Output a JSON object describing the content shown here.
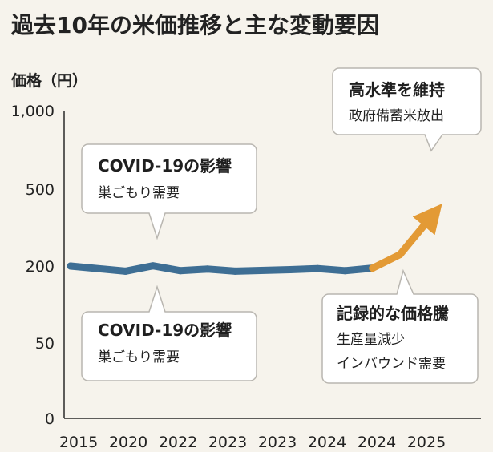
{
  "chart_data": {
    "type": "line",
    "title": "過去10年の米価推移と主な変動要因",
    "ylabel": "価格（円）",
    "xlabel": "",
    "y_ticks": [
      "1,000",
      "500",
      "200",
      "50",
      "0"
    ],
    "y_scale": "categorical-nonlinear",
    "x_tick_labels": [
      "2015",
      "2020",
      "2022",
      "2023",
      "2023",
      "2024",
      "2024",
      "2025"
    ],
    "series": [
      {
        "values": [
          {
            "x": 0.0,
            "y": 200
          },
          {
            "x": 1.0,
            "y": 190
          },
          {
            "x": 1.5,
            "y": 201
          },
          {
            "x": 2.0,
            "y": 191
          },
          {
            "x": 2.5,
            "y": 194
          },
          {
            "x": 3.0,
            "y": 190
          },
          {
            "x": 4.0,
            "y": 193
          },
          {
            "x": 4.5,
            "y": 195
          },
          {
            "x": 5.0,
            "y": 191
          },
          {
            "x": 5.5,
            "y": 196
          }
        ],
        "color": "#3e6e94"
      },
      {
        "values": [
          {
            "x": 5.5,
            "y": 196
          },
          {
            "x": 6.0,
            "y": 245
          },
          {
            "x": 6.6,
            "y": 400
          }
        ],
        "color": "#e39a35",
        "arrow": true
      }
    ],
    "grid": false,
    "legend": "none"
  },
  "annotations": [
    {
      "title": "COVID-19の影響",
      "lines": [
        "巣ごもり需要"
      ]
    },
    {
      "title": "COVID-19の影響",
      "lines": [
        "巣ごもり需要"
      ]
    },
    {
      "title": "高水準を維持",
      "lines": [
        "政府備蓄米放出"
      ]
    },
    {
      "title": "記録的な価格騰",
      "lines": [
        "生産量減少",
        "インバウンド需要"
      ]
    }
  ],
  "colors": {
    "background": "#f6f3ec",
    "line_blue": "#3e6e94",
    "line_orange": "#e39a35",
    "axis": "#2a2a2a"
  }
}
